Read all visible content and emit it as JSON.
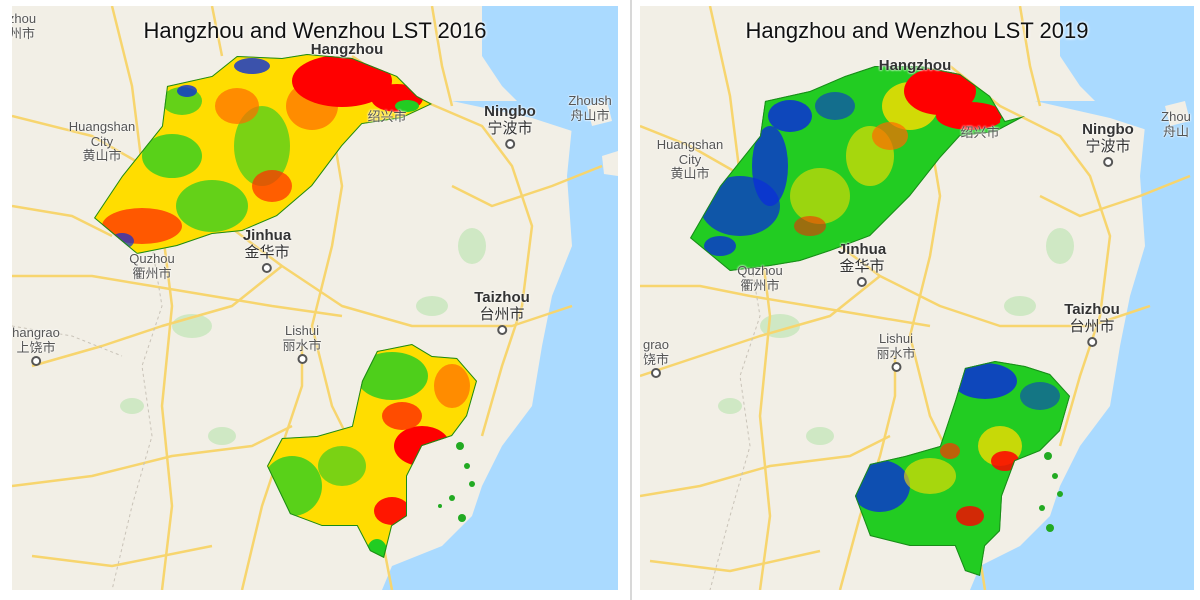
{
  "panels": [
    {
      "title": "Hangzhou and Wenzhou LST 2016",
      "year": 2016,
      "cities": {
        "hangzhou": {
          "en": "Hangzhou"
        },
        "ningbo": {
          "en": "Ningbo",
          "zh": "宁波市"
        },
        "zhoushan": {
          "en": "Zhoush",
          "zh": "舟山市"
        },
        "shaoxing": {
          "zh": "绍兴市"
        },
        "huangshan": {
          "en": "Huangshan City",
          "zh": "黄山市"
        },
        "jinhua": {
          "en": "Jinhua",
          "zh": "金华市"
        },
        "quzhou": {
          "en": "Quzhou",
          "zh": "衢州市"
        },
        "taizhou": {
          "en": "Taizhou",
          "zh": "台州市"
        },
        "shangrao": {
          "en": "hangrao",
          "zh": "上饶市"
        },
        "lishui": {
          "en": "Lishui",
          "zh": "丽水市"
        },
        "corner": {
          "en": "zhou",
          "zh": "州市"
        }
      },
      "lst_dominant_color": "#ffdd00"
    },
    {
      "title": "Hangzhou and Wenzhou LST 2019",
      "year": 2019,
      "cities": {
        "hangzhou": {
          "en": "Hangzhou"
        },
        "ningbo": {
          "en": "Ningbo",
          "zh": "宁波市"
        },
        "zhoushan": {
          "en": "Zhou",
          "zh": "舟山"
        },
        "shaoxing": {
          "zh": "绍兴市"
        },
        "huangshan": {
          "en": "Huangshan City",
          "zh": "黄山市"
        },
        "jinhua": {
          "en": "Jinhua",
          "zh": "金华市"
        },
        "quzhou": {
          "en": "Quzhou",
          "zh": "衢州市"
        },
        "taizhou": {
          "en": "Taizhou",
          "zh": "台州市"
        },
        "shangrao": {
          "en": "grao",
          "zh": "饶市"
        },
        "lishui": {
          "en": "Lishui",
          "zh": "丽水市"
        }
      },
      "lst_dominant_color": "#22cc22"
    }
  ],
  "colors": {
    "land": "#f2efe6",
    "sea": "#aadaff",
    "road": "#f7d56e",
    "park": "#cfe8c4",
    "lst_hot": "#ff0000",
    "lst_warm": "#ffdd00",
    "lst_mild": "#22cc22",
    "lst_cool": "#0a2fd6"
  }
}
